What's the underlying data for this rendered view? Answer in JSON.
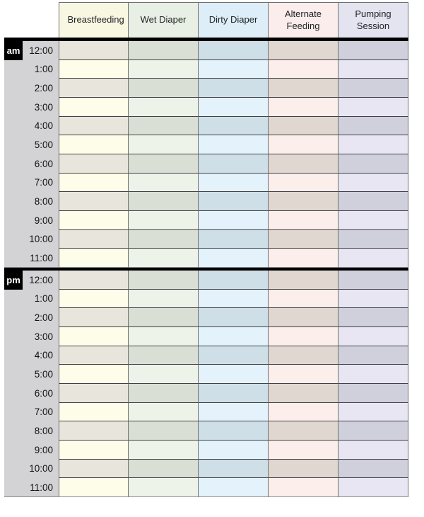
{
  "table": {
    "columns": [
      {
        "key": "breastfeeding",
        "label": "Breastfeeding",
        "header_bg": "#f8f8e2",
        "row_light_bg": "#fefde9",
        "row_dark_bg": "#e8e6dc"
      },
      {
        "key": "wet-diaper",
        "label": "Wet Diaper",
        "header_bg": "#e8efe4",
        "row_light_bg": "#edf3e9",
        "row_dark_bg": "#d9dfd5"
      },
      {
        "key": "dirty-diaper",
        "label": "Dirty Diaper",
        "header_bg": "#ddeef8",
        "row_light_bg": "#e4f2fb",
        "row_dark_bg": "#cfdfe8"
      },
      {
        "key": "alternate-feeding",
        "label": "Alternate Feeding",
        "header_bg": "#fbedeb",
        "row_light_bg": "#fceeea",
        "row_dark_bg": "#e0d7d0"
      },
      {
        "key": "pumping-session",
        "label": "Pumping Session",
        "header_bg": "#e4e4f0",
        "row_light_bg": "#e8e6f2",
        "row_dark_bg": "#d0d0dc"
      }
    ],
    "sections": [
      {
        "meridiem": "am",
        "times": [
          "12:00",
          "1:00",
          "2:00",
          "3:00",
          "4:00",
          "5:00",
          "6:00",
          "7:00",
          "8:00",
          "9:00",
          "10:00",
          "11:00"
        ]
      },
      {
        "meridiem": "pm",
        "times": [
          "12:00",
          "1:00",
          "2:00",
          "3:00",
          "4:00",
          "5:00",
          "6:00",
          "7:00",
          "8:00",
          "9:00",
          "10:00",
          "11:00"
        ]
      }
    ],
    "colors": {
      "time_column_bg": "#d3d3d6",
      "meridiem_badge_bg": "#000000",
      "meridiem_badge_text": "#ffffff",
      "grid_line_vertical": "#6e6e72",
      "grid_line_horizontal": "#414145",
      "section_separator": "#000000",
      "outer_edge": "#8b8b8f"
    }
  }
}
